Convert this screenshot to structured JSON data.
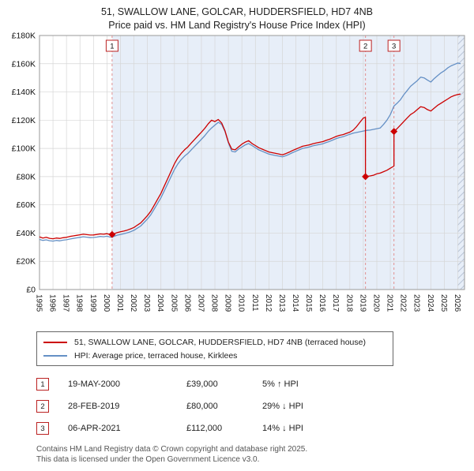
{
  "title": "51, SWALLOW LANE, GOLCAR, HUDDERSFIELD, HD7 4NB",
  "subtitle": "Price paid vs. HM Land Registry's House Price Index (HPI)",
  "chart_data": {
    "type": "line",
    "x_range": [
      1995,
      2026.5
    ],
    "ylim": [
      0,
      180000
    ],
    "x_ticks": [
      1995,
      1996,
      1997,
      1998,
      1999,
      2000,
      2001,
      2002,
      2003,
      2004,
      2005,
      2006,
      2007,
      2008,
      2009,
      2010,
      2011,
      2012,
      2013,
      2014,
      2015,
      2016,
      2017,
      2018,
      2019,
      2020,
      2021,
      2022,
      2023,
      2024,
      2025,
      2026
    ],
    "y_ticks": [
      [
        0,
        "£0"
      ],
      [
        20000,
        "£20K"
      ],
      [
        40000,
        "£40K"
      ],
      [
        60000,
        "£60K"
      ],
      [
        80000,
        "£80K"
      ],
      [
        100000,
        "£100K"
      ],
      [
        120000,
        "£120K"
      ],
      [
        140000,
        "£140K"
      ],
      [
        160000,
        "£160K"
      ],
      [
        180000,
        "£180K"
      ]
    ],
    "grid": true,
    "legend_position": "bottom",
    "shade_from": 2000.38,
    "hatch_from": 2026.0,
    "colors": {
      "shade": "#e7eef8",
      "dashed": "#e09090",
      "marker_box": "#bb2222",
      "grid": "#d6d6d6"
    },
    "series": [
      {
        "name": "51, SWALLOW LANE, GOLCAR, HUDDERSFIELD, HD7 4NB (terraced house)",
        "color": "#cc0000",
        "points": [
          [
            1995,
            37300
          ],
          [
            1995.25,
            36500
          ],
          [
            1995.5,
            37000
          ],
          [
            1995.75,
            36300
          ],
          [
            1996,
            36000
          ],
          [
            1996.25,
            36500
          ],
          [
            1996.5,
            36200
          ],
          [
            1996.75,
            36700
          ],
          [
            1997,
            37000
          ],
          [
            1997.25,
            37600
          ],
          [
            1997.5,
            38000
          ],
          [
            1997.75,
            38400
          ],
          [
            1998,
            38800
          ],
          [
            1998.25,
            39200
          ],
          [
            1998.5,
            38900
          ],
          [
            1998.75,
            38600
          ],
          [
            1999,
            38700
          ],
          [
            1999.25,
            39000
          ],
          [
            1999.5,
            39400
          ],
          [
            1999.75,
            39200
          ],
          [
            2000,
            39600
          ],
          [
            2000.25,
            38900
          ],
          [
            2000.38,
            39000
          ],
          [
            2000.75,
            40300
          ],
          [
            2001,
            40900
          ],
          [
            2001.25,
            41400
          ],
          [
            2001.5,
            42100
          ],
          [
            2001.75,
            43000
          ],
          [
            2002,
            44000
          ],
          [
            2002.25,
            45600
          ],
          [
            2002.5,
            47200
          ],
          [
            2002.75,
            49800
          ],
          [
            2003,
            52400
          ],
          [
            2003.25,
            55500
          ],
          [
            2003.5,
            59700
          ],
          [
            2003.75,
            63900
          ],
          [
            2004,
            68100
          ],
          [
            2004.25,
            73400
          ],
          [
            2004.5,
            78600
          ],
          [
            2004.75,
            83800
          ],
          [
            2005,
            89100
          ],
          [
            2005.25,
            93300
          ],
          [
            2005.5,
            96400
          ],
          [
            2005.75,
            99000
          ],
          [
            2006,
            101100
          ],
          [
            2006.25,
            103800
          ],
          [
            2006.5,
            106400
          ],
          [
            2006.75,
            109000
          ],
          [
            2007,
            111600
          ],
          [
            2007.25,
            114200
          ],
          [
            2007.5,
            117400
          ],
          [
            2007.75,
            120000
          ],
          [
            2008,
            119000
          ],
          [
            2008.25,
            120500
          ],
          [
            2008.5,
            118000
          ],
          [
            2008.75,
            112500
          ],
          [
            2009,
            104500
          ],
          [
            2009.25,
            99500
          ],
          [
            2009.5,
            99000
          ],
          [
            2009.75,
            101000
          ],
          [
            2010,
            103000
          ],
          [
            2010.25,
            104500
          ],
          [
            2010.5,
            105500
          ],
          [
            2010.75,
            103500
          ],
          [
            2011,
            102000
          ],
          [
            2011.25,
            100500
          ],
          [
            2011.5,
            99500
          ],
          [
            2011.75,
            98500
          ],
          [
            2012,
            97500
          ],
          [
            2012.25,
            97000
          ],
          [
            2012.5,
            96500
          ],
          [
            2012.75,
            96000
          ],
          [
            2013,
            95500
          ],
          [
            2013.25,
            96300
          ],
          [
            2013.5,
            97300
          ],
          [
            2013.75,
            98500
          ],
          [
            2014,
            99500
          ],
          [
            2014.25,
            100500
          ],
          [
            2014.5,
            101500
          ],
          [
            2014.75,
            102000
          ],
          [
            2015,
            102500
          ],
          [
            2015.25,
            103300
          ],
          [
            2015.5,
            103800
          ],
          [
            2015.75,
            104300
          ],
          [
            2016,
            104800
          ],
          [
            2016.25,
            105700
          ],
          [
            2016.5,
            106500
          ],
          [
            2016.75,
            107500
          ],
          [
            2017,
            108500
          ],
          [
            2017.25,
            109300
          ],
          [
            2017.5,
            109800
          ],
          [
            2017.75,
            110700
          ],
          [
            2018,
            111500
          ],
          [
            2018.25,
            113000
          ],
          [
            2018.5,
            115500
          ],
          [
            2018.75,
            118500
          ],
          [
            2019,
            121500
          ],
          [
            2019.16,
            122000
          ],
          [
            2019.16,
            80000
          ],
          [
            2019.5,
            80500
          ],
          [
            2019.75,
            81000
          ],
          [
            2020,
            82000
          ],
          [
            2020.25,
            82500
          ],
          [
            2020.5,
            83500
          ],
          [
            2020.75,
            84500
          ],
          [
            2021,
            86000
          ],
          [
            2021.27,
            87500
          ],
          [
            2021.27,
            112000
          ],
          [
            2021.5,
            114000
          ],
          [
            2021.75,
            116500
          ],
          [
            2022,
            119000
          ],
          [
            2022.25,
            121500
          ],
          [
            2022.5,
            124000
          ],
          [
            2022.75,
            125500
          ],
          [
            2023,
            127500
          ],
          [
            2023.25,
            129500
          ],
          [
            2023.5,
            129000
          ],
          [
            2023.75,
            127500
          ],
          [
            2024,
            126500
          ],
          [
            2024.25,
            128500
          ],
          [
            2024.5,
            130500
          ],
          [
            2024.75,
            132000
          ],
          [
            2025,
            133500
          ],
          [
            2025.25,
            135000
          ],
          [
            2025.5,
            136500
          ],
          [
            2025.75,
            137500
          ],
          [
            2026,
            138200
          ],
          [
            2026.2,
            138500
          ]
        ]
      },
      {
        "name": "HPI: Average price, terraced house, Kirklees",
        "color": "#6590c5",
        "points": [
          [
            1995,
            35500
          ],
          [
            1995.25,
            34800
          ],
          [
            1995.5,
            35200
          ],
          [
            1995.75,
            34600
          ],
          [
            1996,
            34300
          ],
          [
            1996.25,
            34800
          ],
          [
            1996.5,
            34500
          ],
          [
            1996.75,
            35000
          ],
          [
            1997,
            35300
          ],
          [
            1997.25,
            35800
          ],
          [
            1997.5,
            36200
          ],
          [
            1997.75,
            36600
          ],
          [
            1998,
            37000
          ],
          [
            1998.25,
            37400
          ],
          [
            1998.5,
            37100
          ],
          [
            1998.75,
            36800
          ],
          [
            1999,
            36900
          ],
          [
            1999.25,
            37200
          ],
          [
            1999.5,
            37600
          ],
          [
            1999.75,
            37400
          ],
          [
            2000,
            37800
          ],
          [
            2000.25,
            37100
          ],
          [
            2000.38,
            37200
          ],
          [
            2000.75,
            38500
          ],
          [
            2001,
            39000
          ],
          [
            2001.25,
            39500
          ],
          [
            2001.5,
            40200
          ],
          [
            2001.75,
            41000
          ],
          [
            2002,
            42000
          ],
          [
            2002.25,
            43500
          ],
          [
            2002.5,
            45000
          ],
          [
            2002.75,
            47500
          ],
          [
            2003,
            50000
          ],
          [
            2003.25,
            53000
          ],
          [
            2003.5,
            57000
          ],
          [
            2003.75,
            61000
          ],
          [
            2004,
            65000
          ],
          [
            2004.25,
            70000
          ],
          [
            2004.5,
            75000
          ],
          [
            2004.75,
            80000
          ],
          [
            2005,
            85000
          ],
          [
            2005.25,
            89000
          ],
          [
            2005.5,
            92000
          ],
          [
            2005.75,
            94500
          ],
          [
            2006,
            96500
          ],
          [
            2006.25,
            99000
          ],
          [
            2006.5,
            101500
          ],
          [
            2006.75,
            104000
          ],
          [
            2007,
            106500
          ],
          [
            2007.25,
            109000
          ],
          [
            2007.5,
            112000
          ],
          [
            2007.75,
            114500
          ],
          [
            2008,
            116500
          ],
          [
            2008.25,
            118500
          ],
          [
            2008.5,
            117000
          ],
          [
            2008.75,
            112000
          ],
          [
            2009,
            104000
          ],
          [
            2009.25,
            98000
          ],
          [
            2009.5,
            97500
          ],
          [
            2009.75,
            99500
          ],
          [
            2010,
            101000
          ],
          [
            2010.25,
            102500
          ],
          [
            2010.5,
            103500
          ],
          [
            2010.75,
            102000
          ],
          [
            2011,
            100500
          ],
          [
            2011.25,
            99000
          ],
          [
            2011.5,
            98000
          ],
          [
            2011.75,
            97000
          ],
          [
            2012,
            96000
          ],
          [
            2012.25,
            95500
          ],
          [
            2012.5,
            95000
          ],
          [
            2012.75,
            94500
          ],
          [
            2013,
            94000
          ],
          [
            2013.25,
            94800
          ],
          [
            2013.5,
            95800
          ],
          [
            2013.75,
            97000
          ],
          [
            2014,
            98000
          ],
          [
            2014.25,
            99000
          ],
          [
            2014.5,
            100000
          ],
          [
            2014.75,
            100500
          ],
          [
            2015,
            101000
          ],
          [
            2015.25,
            101800
          ],
          [
            2015.5,
            102300
          ],
          [
            2015.75,
            102800
          ],
          [
            2016,
            103300
          ],
          [
            2016.25,
            104200
          ],
          [
            2016.5,
            105000
          ],
          [
            2016.75,
            106000
          ],
          [
            2017,
            107000
          ],
          [
            2017.25,
            107800
          ],
          [
            2017.5,
            108300
          ],
          [
            2017.75,
            109200
          ],
          [
            2018,
            110000
          ],
          [
            2018.25,
            110800
          ],
          [
            2018.5,
            111300
          ],
          [
            2018.75,
            111800
          ],
          [
            2019,
            112300
          ],
          [
            2019.25,
            112800
          ],
          [
            2019.5,
            113000
          ],
          [
            2019.75,
            113500
          ],
          [
            2020,
            114000
          ],
          [
            2020.25,
            114500
          ],
          [
            2020.5,
            117000
          ],
          [
            2020.75,
            120000
          ],
          [
            2021,
            124000
          ],
          [
            2021.27,
            130000
          ],
          [
            2021.5,
            132000
          ],
          [
            2021.75,
            134500
          ],
          [
            2022,
            138000
          ],
          [
            2022.25,
            141000
          ],
          [
            2022.5,
            144000
          ],
          [
            2022.75,
            146000
          ],
          [
            2023,
            148000
          ],
          [
            2023.25,
            150500
          ],
          [
            2023.5,
            150000
          ],
          [
            2023.75,
            148500
          ],
          [
            2024,
            147000
          ],
          [
            2024.25,
            149500
          ],
          [
            2024.5,
            151500
          ],
          [
            2024.75,
            153500
          ],
          [
            2025,
            155000
          ],
          [
            2025.25,
            157000
          ],
          [
            2025.5,
            158500
          ],
          [
            2025.75,
            159500
          ],
          [
            2026,
            160500
          ],
          [
            2026.2,
            160000
          ]
        ]
      }
    ],
    "markers": [
      {
        "label": "1",
        "x": 2000.38,
        "value": 39000
      },
      {
        "label": "2",
        "x": 2019.16,
        "value": 80000
      },
      {
        "label": "3",
        "x": 2021.27,
        "value": 112000
      }
    ]
  },
  "legend": {
    "items": [
      {
        "label": "51, SWALLOW LANE, GOLCAR, HUDDERSFIELD, HD7 4NB (terraced house)"
      },
      {
        "label": "HPI: Average price, terraced house, Kirklees"
      }
    ]
  },
  "transactions": [
    {
      "num": "1",
      "date": "19-MAY-2000",
      "price": "£39,000",
      "hpi": "5% ↑ HPI"
    },
    {
      "num": "2",
      "date": "28-FEB-2019",
      "price": "£80,000",
      "hpi": "29% ↓ HPI"
    },
    {
      "num": "3",
      "date": "06-APR-2021",
      "price": "£112,000",
      "hpi": "14% ↓ HPI"
    }
  ],
  "footer": {
    "line1": "Contains HM Land Registry data © Crown copyright and database right 2025.",
    "line2": "This data is licensed under the Open Government Licence v3.0."
  }
}
